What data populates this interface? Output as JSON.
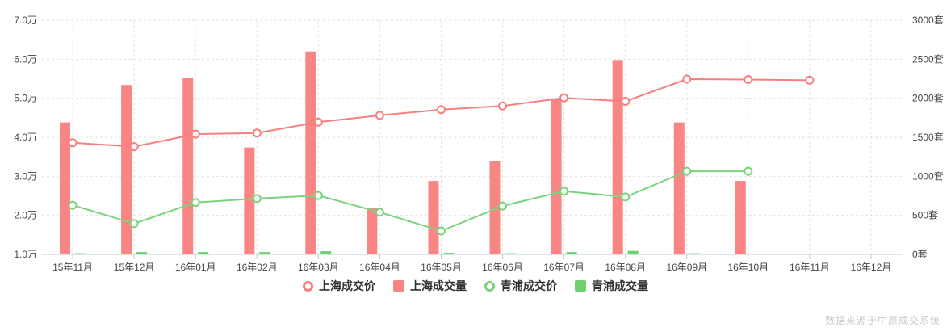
{
  "chart_data": {
    "type": "mixed",
    "categories": [
      "15年11月",
      "15年12月",
      "16年01月",
      "16年02月",
      "16年03月",
      "16年04月",
      "16年05月",
      "16年06月",
      "16年07月",
      "16年08月",
      "16年09月",
      "16年10月",
      "16年11月",
      "16年12月"
    ],
    "series": [
      {
        "id": "shanghai-price",
        "name": "上海成交价",
        "type": "line",
        "y_axis": "left",
        "color": "#f87f7f",
        "values": [
          3.86,
          3.76,
          4.08,
          4.11,
          4.39,
          4.56,
          4.71,
          4.8,
          5.01,
          4.92,
          5.49,
          5.48,
          5.46,
          null
        ]
      },
      {
        "id": "shanghai-volume",
        "name": "上海成交量",
        "type": "bar",
        "y_axis": "right",
        "color": "#f98585",
        "values": [
          1690,
          2170,
          2260,
          1370,
          2600,
          590,
          940,
          1200,
          1990,
          2490,
          1690,
          940,
          null,
          null
        ]
      },
      {
        "id": "qingpu-price",
        "name": "青浦成交价",
        "type": "line",
        "y_axis": "left",
        "color": "#7ad47e",
        "values": [
          2.26,
          1.79,
          2.33,
          2.43,
          2.51,
          2.08,
          1.6,
          2.24,
          2.62,
          2.47,
          3.13,
          3.13,
          null,
          null
        ]
      },
      {
        "id": "qingpu-volume",
        "name": "青浦成交量",
        "type": "bar",
        "y_axis": "right",
        "color": "#6fd06f",
        "values": [
          15,
          30,
          30,
          30,
          40,
          0,
          20,
          15,
          30,
          45,
          15,
          null,
          null,
          null
        ]
      }
    ],
    "y_axis_left": {
      "unit": "万",
      "min": 1,
      "max": 7,
      "labels": [
        "1.0万",
        "2.0万",
        "3.0万",
        "4.0万",
        "5.0万",
        "6.0万",
        "7.0万"
      ]
    },
    "y_axis_right": {
      "unit": "套",
      "min": 0,
      "max": 3000,
      "labels": [
        "0套",
        "500套",
        "1000套",
        "1500套",
        "2000套",
        "2500套",
        "3000套"
      ]
    },
    "grid": true,
    "legend_position": "bottom"
  },
  "footer": {
    "source_note": "数据来源于中原成交系统"
  },
  "colors": {
    "background": "#ffffff",
    "axis_line": "#b7cbd9",
    "grid_line": "#e3e3e3",
    "axis_text": "#464646",
    "legend_text": "#333333",
    "source_text": "#c9c9c9"
  }
}
